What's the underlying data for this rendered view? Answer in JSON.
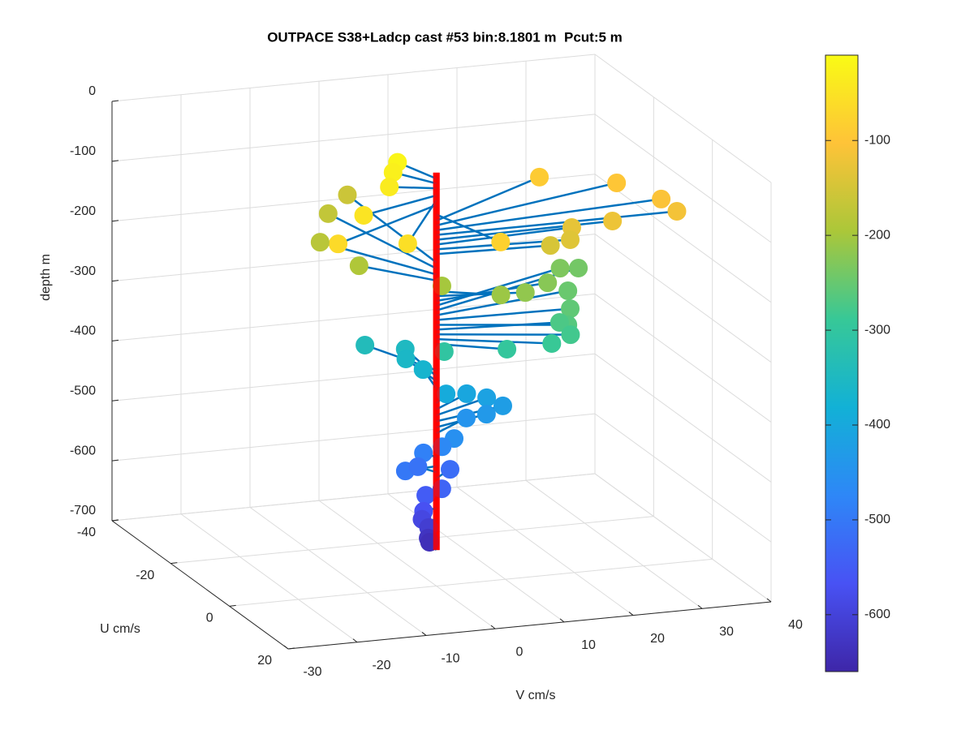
{
  "chart_data": {
    "type": "quiver3d",
    "title": "OUTPACE S38+Ladcp cast #53 bin:8.1801 m  Pcut:5 m",
    "xlabel": "V cm/s",
    "ylabel": "U cm/s",
    "zlabel": "depth m",
    "xlim": [
      -30,
      40
    ],
    "xticks": [
      -30,
      -20,
      -10,
      0,
      10,
      20,
      30,
      40
    ],
    "ylim": [
      -40,
      20
    ],
    "yticks": [
      -40,
      -20,
      0,
      20
    ],
    "zlim": [
      -700,
      0
    ],
    "zticks": [
      -700,
      -600,
      -500,
      -400,
      -300,
      -200,
      -100,
      0
    ],
    "grid": true,
    "line_color": "#0072bd",
    "reference_line": {
      "v": [
        0,
        0
      ],
      "u": [
        0,
        0
      ],
      "z": [
        -10,
        -640
      ],
      "color": "#ff0000"
    },
    "clim": [
      -660,
      -10
    ],
    "cticks": [
      -600,
      -500,
      -400,
      -300,
      -200,
      -100
    ],
    "colormap": [
      "#3e26a8",
      "#4852f4",
      "#2e87f7",
      "#12b1d6",
      "#37c897",
      "#abc739",
      "#fec338",
      "#f9fb15"
    ],
    "z": [
      -20,
      -28,
      -36,
      -48,
      -56,
      -64,
      -160,
      -170,
      -180,
      -190,
      -80,
      -90,
      -98,
      -106,
      -114,
      -122,
      -130,
      -138,
      -146,
      -200,
      -208,
      -216,
      -224,
      -232,
      -240,
      -248,
      -256,
      -264,
      -272,
      -280,
      -288,
      -296,
      -304,
      -340,
      -350,
      -358,
      -370,
      -395,
      -405,
      -415,
      -425,
      -435,
      -445,
      -455,
      -470,
      -485,
      -500,
      -510,
      -520,
      -535,
      -550,
      -570,
      -590,
      -610,
      -630,
      -640
    ],
    "u": [
      -8.3,
      -6.3,
      -2.4,
      5.3,
      16.8,
      12.1,
      -31.5,
      -27.0,
      -18.0,
      -9.2,
      13.9,
      -13.8,
      -10.3,
      -3.8,
      -0.1,
      -0.65,
      -1.6,
      1.4,
      1.0,
      0,
      4.1,
      2.1,
      -3.0,
      -10.5,
      -11.8,
      -4.8,
      0.7,
      5.3,
      2.0,
      5.5,
      6.4,
      5.0,
      1.5,
      -13.3,
      -12.5,
      -10.4,
      -8.3,
      -3.5,
      -5.2,
      -5.2,
      -3.7,
      -3.4,
      -5.1,
      0.4,
      -0.4,
      -2.3,
      0.7,
      -3.0,
      -3.1,
      0.9,
      -0.8,
      0.8,
      -0.9,
      -2.2,
      -2.8,
      -3.5
    ],
    "v": [
      -2.1,
      -3.6,
      -5.8,
      -12.8,
      -11.3,
      -19.4,
      0.5,
      -4.2,
      -9.2,
      -7.3,
      3.4,
      20.8,
      30.5,
      34.2,
      34.9,
      25.8,
      20.3,
      18.8,
      16.1,
      0.8,
      7.6,
      12.0,
      17.4,
      22.4,
      25.6,
      21.1,
      19.1,
      16.8,
      17.0,
      17.1,
      14.0,
      8.1,
      0.5,
      -4.7,
      0.8,
      0.0,
      1.6,
      2.9,
      6.6,
      9.5,
      11.2,
      8.7,
      6.5,
      2.4,
      1.0,
      -0.9,
      -4.8,
      -1.4,
      3.3,
      0.4,
      -1.2,
      -2.2,
      -1.7,
      -0.2,
      0,
      0.5
    ]
  }
}
